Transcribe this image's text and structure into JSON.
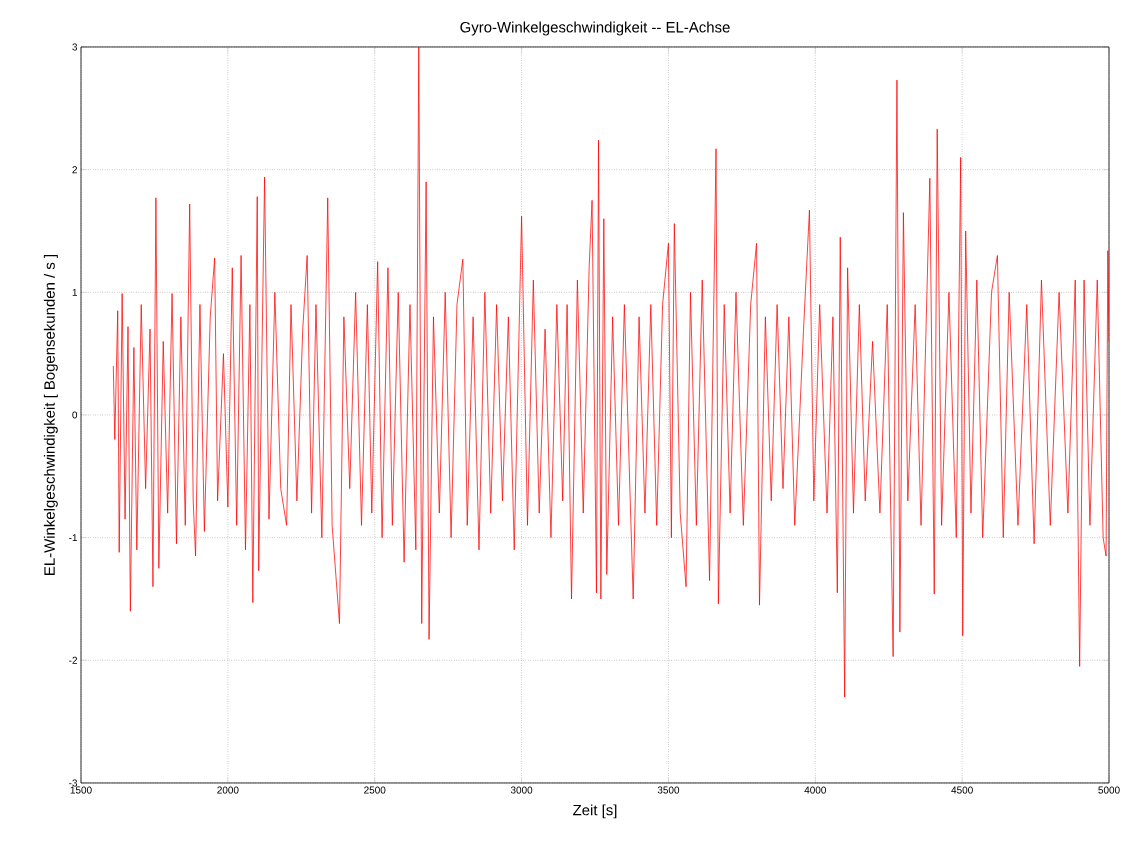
{
  "chart_data": {
    "type": "line",
    "title": "Gyro-Winkelgeschwindigkeit       -- EL-Achse",
    "xlabel": "Zeit [s]",
    "ylabel": "EL-Winkelgeschwindigkeit  [ Bogensekunden / s ]",
    "xlim": [
      1500,
      5000
    ],
    "ylim": [
      -3,
      3
    ],
    "xticks": [
      1500,
      2000,
      2500,
      3000,
      3500,
      4000,
      4500,
      5000
    ],
    "yticks": [
      -3,
      -2,
      -1,
      0,
      1,
      2,
      3
    ],
    "grid": true,
    "series": [
      {
        "color": "#ff0000",
        "x": [
          1610,
          1615,
          1625,
          1630,
          1640,
          1650,
          1660,
          1668,
          1680,
          1690,
          1705,
          1720,
          1735,
          1745,
          1755,
          1765,
          1780,
          1795,
          1810,
          1825,
          1840,
          1855,
          1870,
          1882,
          1890,
          1905,
          1920,
          1940,
          1955,
          1965,
          1985,
          2000,
          2015,
          2030,
          2045,
          2060,
          2075,
          2085,
          2100,
          2105,
          2125,
          2140,
          2160,
          2180,
          2200,
          2215,
          2235,
          2255,
          2270,
          2285,
          2300,
          2320,
          2340,
          2355,
          2380,
          2395,
          2415,
          2435,
          2455,
          2475,
          2490,
          2510,
          2525,
          2545,
          2560,
          2580,
          2600,
          2620,
          2640,
          2650,
          2660,
          2675,
          2685,
          2700,
          2720,
          2740,
          2760,
          2780,
          2800,
          2815,
          2835,
          2855,
          2875,
          2895,
          2915,
          2935,
          2955,
          2975,
          3000,
          3020,
          3040,
          3060,
          3080,
          3100,
          3120,
          3140,
          3155,
          3170,
          3190,
          3210,
          3230,
          3240,
          3255,
          3262,
          3270,
          3280,
          3290,
          3310,
          3330,
          3350,
          3380,
          3400,
          3420,
          3440,
          3460,
          3480,
          3500,
          3510,
          3520,
          3540,
          3560,
          3575,
          3595,
          3615,
          3640,
          3655,
          3662,
          3670,
          3690,
          3710,
          3730,
          3755,
          3780,
          3800,
          3810,
          3830,
          3850,
          3870,
          3890,
          3910,
          3930,
          3960,
          3980,
          3995,
          4015,
          4040,
          4060,
          4075,
          4085,
          4100,
          4110,
          4130,
          4150,
          4170,
          4195,
          4220,
          4245,
          4265,
          4278,
          4288,
          4300,
          4315,
          4340,
          4360,
          4390,
          4405,
          4415,
          4430,
          4455,
          4480,
          4495,
          4502,
          4512,
          4530,
          4550,
          4570,
          4600,
          4620,
          4640,
          4660,
          4690,
          4720,
          4745,
          4770,
          4800,
          4830,
          4860,
          4885,
          4900,
          4915,
          4935,
          4960,
          4980,
          4990,
          4996,
          5000
        ],
        "values": [
          0.4,
          -0.2,
          0.85,
          -1.12,
          0.99,
          -0.85,
          0.72,
          -1.6,
          0.55,
          -1.1,
          0.9,
          -0.6,
          0.7,
          -1.4,
          1.77,
          -1.25,
          0.6,
          -0.8,
          0.99,
          -1.05,
          0.8,
          -0.9,
          1.72,
          -0.7,
          -1.15,
          0.9,
          -0.95,
          0.8,
          1.28,
          -0.7,
          0.5,
          -0.75,
          1.2,
          -0.9,
          1.3,
          -1.1,
          0.9,
          -1.53,
          1.78,
          -1.27,
          1.94,
          -0.85,
          1.0,
          -0.6,
          -0.9,
          0.9,
          -0.7,
          0.7,
          1.3,
          -0.8,
          0.9,
          -1.0,
          1.77,
          -0.9,
          -1.7,
          0.8,
          -0.6,
          1.0,
          -0.9,
          0.9,
          -0.8,
          1.25,
          -1.0,
          1.2,
          -0.9,
          1.0,
          -1.2,
          0.9,
          -1.1,
          3.0,
          -1.7,
          1.9,
          -1.83,
          0.8,
          -0.8,
          1.0,
          -1.0,
          0.9,
          1.27,
          -0.9,
          0.8,
          -1.1,
          1.0,
          -0.8,
          0.9,
          -0.7,
          0.8,
          -1.1,
          1.62,
          -0.9,
          1.1,
          -0.8,
          0.7,
          -1.0,
          0.9,
          -0.7,
          0.9,
          -1.5,
          1.1,
          -0.8,
          1.2,
          1.75,
          -1.45,
          2.24,
          -1.5,
          1.6,
          -1.3,
          0.8,
          -0.9,
          0.9,
          -1.5,
          0.8,
          -0.8,
          0.9,
          -0.9,
          0.9,
          1.4,
          -1.0,
          1.56,
          -0.8,
          -1.4,
          1.0,
          -0.9,
          1.1,
          -1.35,
          1.0,
          2.17,
          -1.54,
          0.9,
          -0.8,
          1.0,
          -0.9,
          0.9,
          1.4,
          -1.55,
          0.8,
          -0.7,
          0.9,
          -0.6,
          0.8,
          -0.9,
          0.7,
          1.67,
          -0.7,
          0.9,
          -0.8,
          0.8,
          -1.45,
          1.45,
          -2.3,
          1.2,
          -0.8,
          0.9,
          -0.7,
          0.6,
          -0.8,
          0.9,
          -1.97,
          2.73,
          -1.77,
          1.65,
          -0.7,
          0.9,
          -0.9,
          1.93,
          -1.46,
          2.33,
          -0.9,
          1.0,
          -1.0,
          2.1,
          -1.8,
          1.5,
          -0.8,
          1.1,
          -1.0,
          1.0,
          1.3,
          -1.0,
          1.0,
          -0.9,
          0.9,
          -1.05,
          1.1,
          -0.9,
          1.0,
          -0.8,
          1.1,
          -2.05,
          1.1,
          -0.9,
          1.1,
          -1.0,
          -1.15,
          1.34,
          0.6
        ]
      }
    ]
  }
}
